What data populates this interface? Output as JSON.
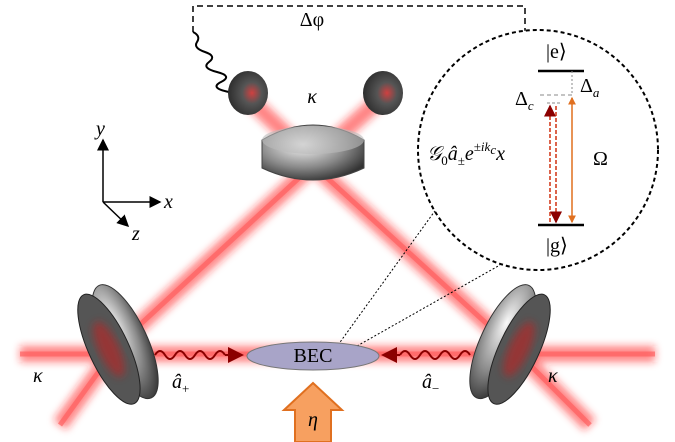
{
  "labels": {
    "delta_phi": "Δφ",
    "kappa_top": "κ",
    "kappa_left": "κ",
    "kappa_right": "κ",
    "axis_y": "y",
    "axis_x": "x",
    "axis_z": "z",
    "state_e": "|e⟩",
    "state_g": "|g⟩",
    "delta_a": {
      "main": "Δ",
      "sub": "a"
    },
    "delta_c": {
      "main": "Δ",
      "sub": "c"
    },
    "omega": "Ω",
    "coupling": {
      "main": "𝒢",
      "sub0": "0",
      "op": "â",
      "sub1": "±",
      "exp": "e",
      "sup": "±ik",
      "supsub": "c",
      "tail": "x"
    },
    "bec": "BEC",
    "a_plus": {
      "main": "â",
      "sub": "+"
    },
    "a_minus": {
      "main": "â",
      "sub": "−"
    },
    "eta": "η"
  }
}
